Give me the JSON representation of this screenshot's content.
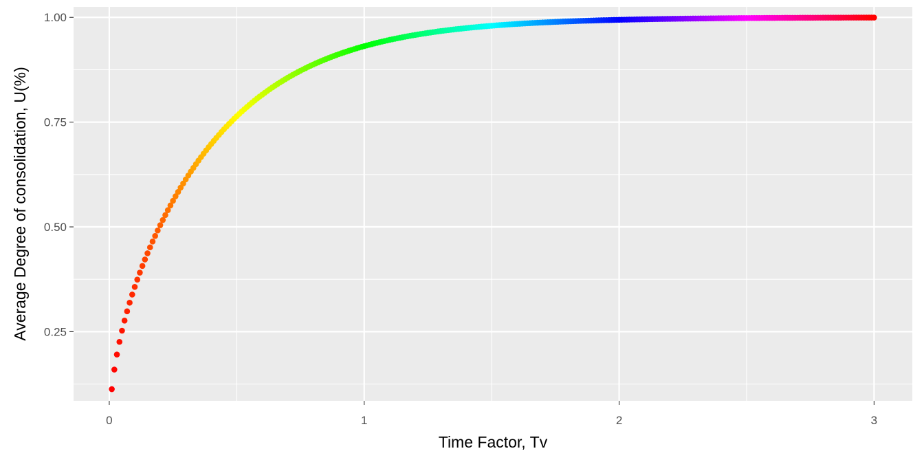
{
  "chart_data": {
    "type": "scatter",
    "title": "",
    "xlabel": "Time Factor, Tv",
    "ylabel": "Average Degree of consolidation, U(%)",
    "xlim": [
      -0.14,
      3.15
    ],
    "ylim": [
      0.085,
      1.025
    ],
    "x_ticks": [
      0,
      1,
      2,
      3
    ],
    "x_tick_labels": [
      "0",
      "1",
      "2",
      "3"
    ],
    "y_ticks": [
      0.25,
      0.5,
      0.75,
      1.0
    ],
    "y_tick_labels": [
      "0.25",
      "0.50",
      "0.75",
      "1.00"
    ],
    "x_minor_ticks": [
      0.5,
      1.5,
      2.5
    ],
    "y_minor_ticks": [
      0.125,
      0.375,
      0.625,
      0.875
    ],
    "grid": true,
    "panel_background": "#ebebeb",
    "grid_color": "#ffffff",
    "color_scale": "rainbow (red → yellow → green → cyan → blue → magenta → red) along Tv",
    "series": [
      {
        "x_start": 0.01,
        "x_end": 3.0,
        "x_step": 0.01,
        "relation": "U = 1 - sum_{m=0..∞} (2/M^2) exp(-M^2 Tv), M = (π/2)(2m+1)",
        "sample_points": [
          {
            "x": 0.01,
            "y": 0.113
          },
          {
            "x": 0.05,
            "y": 0.252
          },
          {
            "x": 0.1,
            "y": 0.357
          },
          {
            "x": 0.2,
            "y": 0.504
          },
          {
            "x": 0.3,
            "y": 0.613
          },
          {
            "x": 0.4,
            "y": 0.698
          },
          {
            "x": 0.5,
            "y": 0.764
          },
          {
            "x": 0.6,
            "y": 0.816
          },
          {
            "x": 0.8,
            "y": 0.887
          },
          {
            "x": 1.0,
            "y": 0.931
          },
          {
            "x": 1.5,
            "y": 0.98
          },
          {
            "x": 2.0,
            "y": 0.994
          },
          {
            "x": 2.5,
            "y": 0.998
          },
          {
            "x": 3.0,
            "y": 0.9995
          }
        ]
      }
    ]
  }
}
